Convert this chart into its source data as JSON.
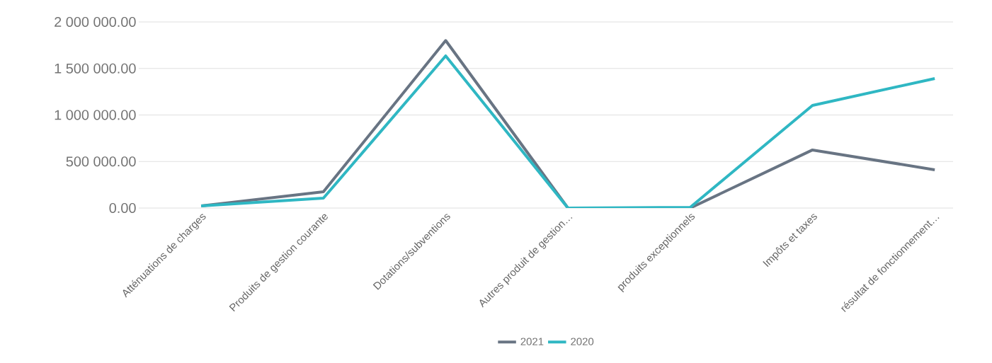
{
  "chart_data": {
    "type": "line",
    "categories": [
      "Atténuations de charges",
      "Produits de gestion courante",
      "Dotations/subventions",
      "Autres produit de gestion…",
      "produits exceptionnels",
      "Impôts et taxes",
      "résultat de fonctionnement…"
    ],
    "series": [
      {
        "name": "2021",
        "color": "#687483",
        "values": [
          23000,
          175000,
          1800000,
          0,
          0,
          624000,
          411000
        ]
      },
      {
        "name": "2020",
        "color": "#2fb7c3",
        "values": [
          23000,
          106000,
          1635000,
          0,
          8000,
          1103000,
          1392000
        ]
      }
    ],
    "ylim": [
      0,
      2000000
    ],
    "yticks": [
      {
        "value": 0,
        "label": "0.00"
      },
      {
        "value": 500000,
        "label": "500 000.00"
      },
      {
        "value": 1000000,
        "label": "1 000 000.00"
      },
      {
        "value": 1500000,
        "label": "1 500 000.00"
      },
      {
        "value": 2000000,
        "label": "2 000 000.00"
      }
    ],
    "grid": "y",
    "legend": "bottom",
    "marker": "none",
    "line_style": "solid"
  }
}
